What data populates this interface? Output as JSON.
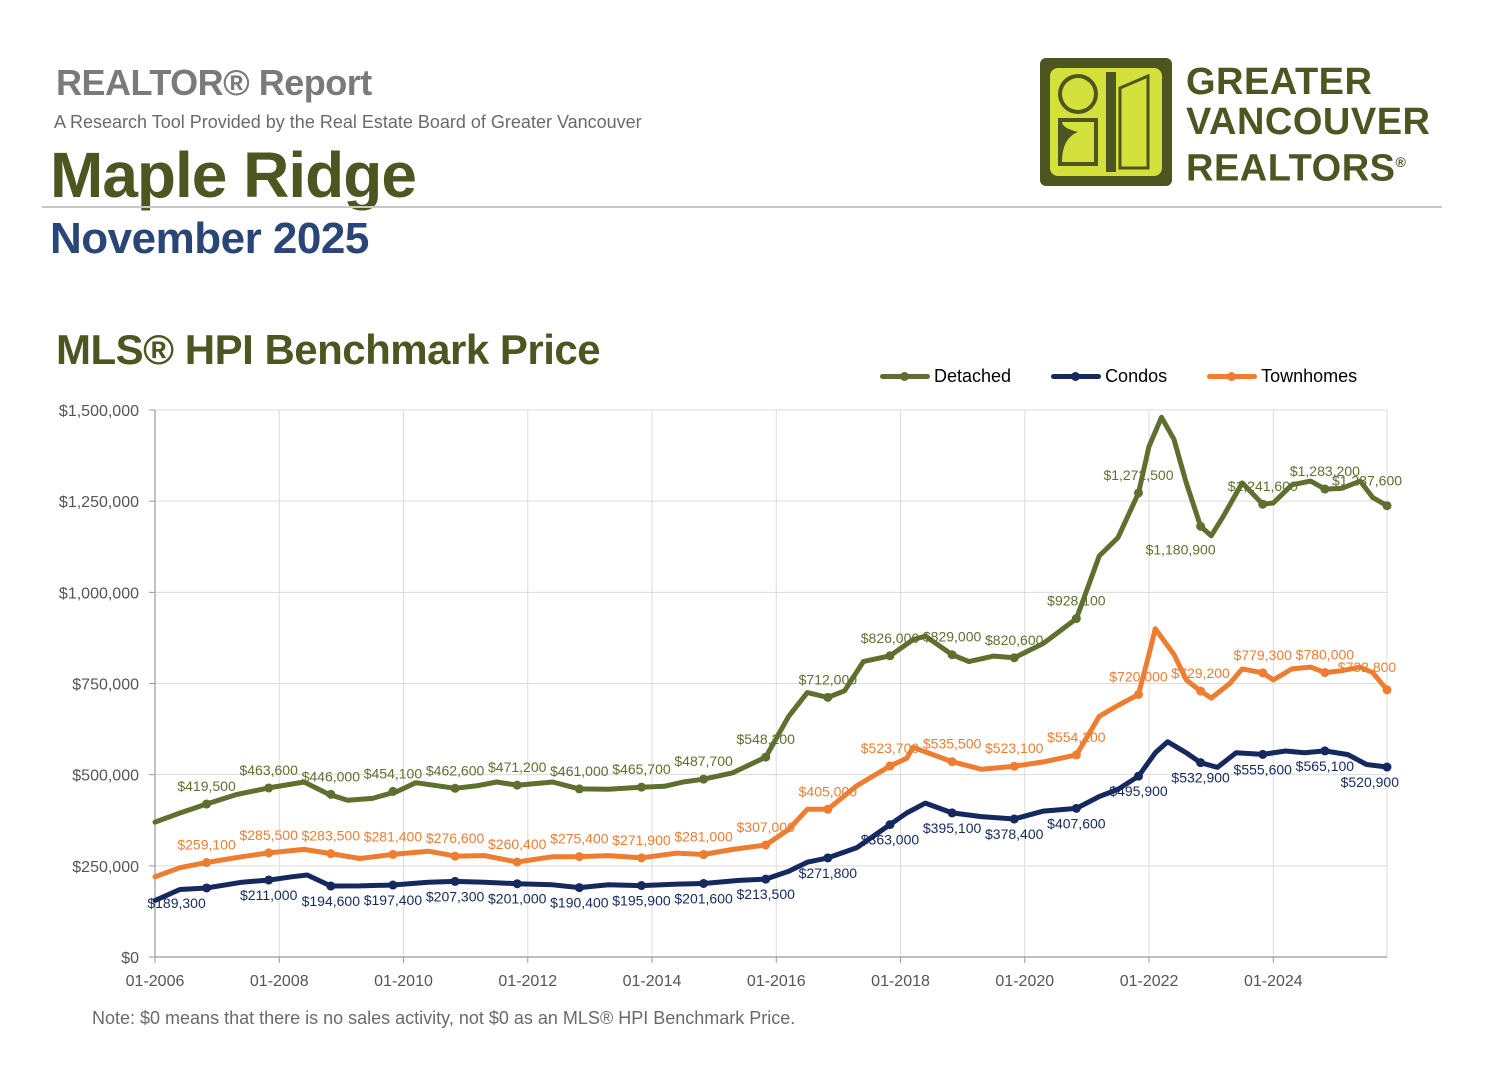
{
  "header": {
    "report_label": "REALTOR® Report",
    "subtitle": "A Research Tool Provided by the Real Estate Board of Greater Vancouver",
    "city": "Maple Ridge",
    "period": "November 2025"
  },
  "logo": {
    "line1": "GREATER",
    "line2": "VANCOUVER",
    "line3": "REALTORS",
    "mark": "®",
    "colors": {
      "dark": "#4d5521",
      "light": "#d4e03b"
    }
  },
  "footnote": "Note: $0 means that there is no sales activity, not $0 as an MLS® HPI Benchmark Price.",
  "colors": {
    "detached": "#5e6f2e",
    "condos": "#16295e",
    "townhomes": "#ee7d31",
    "grid": "#dcdcdc",
    "axis": "#999999"
  },
  "chart_data": {
    "type": "line",
    "title": "MLS® HPI Benchmark Price",
    "xlabel": "",
    "ylabel": "",
    "ylim": [
      0,
      1500000
    ],
    "y_ticks": [
      0,
      250000,
      500000,
      750000,
      1000000,
      1250000,
      1500000
    ],
    "y_tick_labels": [
      "$0",
      "$250,000",
      "$500,000",
      "$750,000",
      "$1,000,000",
      "$1,250,000",
      "$1,500,000"
    ],
    "xlim": [
      2006.0,
      2025.83
    ],
    "x_ticks": [
      2006,
      2008,
      2010,
      2012,
      2014,
      2016,
      2018,
      2020,
      2022,
      2024
    ],
    "x_tick_labels": [
      "01-2006",
      "01-2008",
      "01-2010",
      "01-2012",
      "01-2014",
      "01-2016",
      "01-2018",
      "01-2020",
      "01-2022",
      "01-2024"
    ],
    "grid": true,
    "legend_position": "top-right",
    "series": [
      {
        "name": "Detached",
        "color_key": "detached",
        "points": [
          [
            2006.0,
            370000
          ],
          [
            2006.4,
            395000
          ],
          [
            2006.83,
            419500
          ],
          [
            2007.3,
            445000
          ],
          [
            2007.83,
            463600
          ],
          [
            2008.4,
            480000
          ],
          [
            2008.8,
            446000
          ],
          [
            2009.1,
            430000
          ],
          [
            2009.5,
            435000
          ],
          [
            2009.9,
            454100
          ],
          [
            2010.2,
            478000
          ],
          [
            2010.83,
            462600
          ],
          [
            2011.2,
            470000
          ],
          [
            2011.5,
            480000
          ],
          [
            2011.83,
            471200
          ],
          [
            2012.4,
            480000
          ],
          [
            2012.83,
            461000
          ],
          [
            2013.3,
            460000
          ],
          [
            2013.83,
            465700
          ],
          [
            2014.2,
            468000
          ],
          [
            2014.5,
            480000
          ],
          [
            2014.83,
            487700
          ],
          [
            2015.3,
            505000
          ],
          [
            2015.83,
            548200
          ],
          [
            2016.2,
            660000
          ],
          [
            2016.5,
            725000
          ],
          [
            2016.83,
            712000
          ],
          [
            2017.1,
            730000
          ],
          [
            2017.4,
            810000
          ],
          [
            2017.83,
            826000
          ],
          [
            2018.2,
            870000
          ],
          [
            2018.4,
            880000
          ],
          [
            2018.83,
            829000
          ],
          [
            2019.1,
            810000
          ],
          [
            2019.5,
            825000
          ],
          [
            2019.83,
            820600
          ],
          [
            2020.3,
            860000
          ],
          [
            2020.83,
            928100
          ],
          [
            2021.2,
            1100000
          ],
          [
            2021.5,
            1150000
          ],
          [
            2021.83,
            1272500
          ],
          [
            2022.0,
            1400000
          ],
          [
            2022.2,
            1480000
          ],
          [
            2022.4,
            1420000
          ],
          [
            2022.6,
            1300000
          ],
          [
            2022.83,
            1180900
          ],
          [
            2023.0,
            1155000
          ],
          [
            2023.2,
            1210000
          ],
          [
            2023.5,
            1300000
          ],
          [
            2023.83,
            1241600
          ],
          [
            2024.0,
            1245000
          ],
          [
            2024.3,
            1295000
          ],
          [
            2024.6,
            1305000
          ],
          [
            2024.83,
            1283200
          ],
          [
            2025.1,
            1285000
          ],
          [
            2025.4,
            1305000
          ],
          [
            2025.6,
            1260000
          ],
          [
            2025.83,
            1237600
          ]
        ],
        "labels": [
          {
            "x": 2006.83,
            "y": 419500,
            "text": "$419,500"
          },
          {
            "x": 2007.83,
            "y": 463600,
            "text": "$463,600"
          },
          {
            "x": 2008.83,
            "y": 446000,
            "text": "$446,000"
          },
          {
            "x": 2009.83,
            "y": 454100,
            "text": "$454,100"
          },
          {
            "x": 2010.83,
            "y": 462600,
            "text": "$462,600"
          },
          {
            "x": 2011.83,
            "y": 471200,
            "text": "$471,200"
          },
          {
            "x": 2012.83,
            "y": 461000,
            "text": "$461,000"
          },
          {
            "x": 2013.83,
            "y": 465700,
            "text": "$465,700"
          },
          {
            "x": 2014.83,
            "y": 487700,
            "text": "$487,700"
          },
          {
            "x": 2015.83,
            "y": 548200,
            "text": "$548,200"
          },
          {
            "x": 2016.83,
            "y": 712000,
            "text": "$712,000"
          },
          {
            "x": 2017.83,
            "y": 826000,
            "text": "$826,000"
          },
          {
            "x": 2018.83,
            "y": 829000,
            "text": "$829,000"
          },
          {
            "x": 2019.83,
            "y": 820600,
            "text": "$820,600"
          },
          {
            "x": 2020.83,
            "y": 928100,
            "text": "$928,100"
          },
          {
            "x": 2021.83,
            "y": 1272500,
            "text": "$1,272,500"
          },
          {
            "x": 2022.83,
            "y": 1180900,
            "text": "$1,180,900"
          },
          {
            "x": 2023.83,
            "y": 1241600,
            "text": "$1,241,600"
          },
          {
            "x": 2024.83,
            "y": 1283200,
            "text": "$1,283,200"
          },
          {
            "x": 2025.83,
            "y": 1237600,
            "text": "$1,237,600"
          }
        ]
      },
      {
        "name": "Condos",
        "color_key": "condos",
        "points": [
          [
            2006.0,
            155000
          ],
          [
            2006.4,
            185000
          ],
          [
            2006.83,
            189300
          ],
          [
            2007.4,
            205000
          ],
          [
            2007.83,
            211000
          ],
          [
            2008.2,
            220000
          ],
          [
            2008.45,
            225000
          ],
          [
            2008.83,
            194600
          ],
          [
            2009.3,
            195000
          ],
          [
            2009.83,
            197400
          ],
          [
            2010.4,
            205000
          ],
          [
            2010.83,
            207300
          ],
          [
            2011.3,
            205000
          ],
          [
            2011.83,
            201000
          ],
          [
            2012.4,
            198000
          ],
          [
            2012.83,
            190400
          ],
          [
            2013.3,
            198000
          ],
          [
            2013.83,
            195900
          ],
          [
            2014.4,
            200000
          ],
          [
            2014.83,
            201600
          ],
          [
            2015.4,
            210000
          ],
          [
            2015.83,
            213500
          ],
          [
            2016.2,
            235000
          ],
          [
            2016.5,
            260000
          ],
          [
            2016.83,
            271800
          ],
          [
            2017.3,
            300000
          ],
          [
            2017.83,
            363000
          ],
          [
            2018.1,
            395000
          ],
          [
            2018.4,
            422000
          ],
          [
            2018.83,
            395100
          ],
          [
            2019.3,
            385000
          ],
          [
            2019.83,
            378400
          ],
          [
            2020.3,
            400000
          ],
          [
            2020.83,
            407600
          ],
          [
            2021.2,
            440000
          ],
          [
            2021.5,
            460000
          ],
          [
            2021.83,
            495900
          ],
          [
            2022.1,
            560000
          ],
          [
            2022.3,
            590000
          ],
          [
            2022.6,
            560000
          ],
          [
            2022.83,
            532900
          ],
          [
            2023.1,
            520000
          ],
          [
            2023.4,
            560000
          ],
          [
            2023.83,
            555600
          ],
          [
            2024.2,
            565000
          ],
          [
            2024.5,
            560000
          ],
          [
            2024.83,
            565100
          ],
          [
            2025.2,
            555000
          ],
          [
            2025.5,
            528000
          ],
          [
            2025.83,
            520900
          ]
        ],
        "labels": [
          {
            "x": 2006.83,
            "y": 189300,
            "text": "$189,300"
          },
          {
            "x": 2007.83,
            "y": 211000,
            "text": "$211,000"
          },
          {
            "x": 2008.83,
            "y": 194600,
            "text": "$194,600"
          },
          {
            "x": 2009.83,
            "y": 197400,
            "text": "$197,400"
          },
          {
            "x": 2010.83,
            "y": 207300,
            "text": "$207,300"
          },
          {
            "x": 2011.83,
            "y": 201000,
            "text": "$201,000"
          },
          {
            "x": 2012.83,
            "y": 190400,
            "text": "$190,400"
          },
          {
            "x": 2013.83,
            "y": 195900,
            "text": "$195,900"
          },
          {
            "x": 2014.83,
            "y": 201600,
            "text": "$201,600"
          },
          {
            "x": 2015.83,
            "y": 213500,
            "text": "$213,500"
          },
          {
            "x": 2016.83,
            "y": 271800,
            "text": "$271,800"
          },
          {
            "x": 2017.83,
            "y": 363000,
            "text": "$363,000"
          },
          {
            "x": 2018.83,
            "y": 395100,
            "text": "$395,100"
          },
          {
            "x": 2019.83,
            "y": 378400,
            "text": "$378,400"
          },
          {
            "x": 2020.83,
            "y": 407600,
            "text": "$407,600"
          },
          {
            "x": 2021.83,
            "y": 495900,
            "text": "$495,900"
          },
          {
            "x": 2022.83,
            "y": 532900,
            "text": "$532,900"
          },
          {
            "x": 2023.83,
            "y": 555600,
            "text": "$555,600"
          },
          {
            "x": 2024.83,
            "y": 565100,
            "text": "$565,100"
          },
          {
            "x": 2025.83,
            "y": 520900,
            "text": "$520,900"
          }
        ]
      },
      {
        "name": "Townhomes",
        "color_key": "townhomes",
        "points": [
          [
            2006.0,
            220000
          ],
          [
            2006.4,
            245000
          ],
          [
            2006.83,
            259100
          ],
          [
            2007.4,
            275000
          ],
          [
            2007.83,
            285500
          ],
          [
            2008.4,
            295000
          ],
          [
            2008.83,
            283500
          ],
          [
            2009.3,
            270000
          ],
          [
            2009.83,
            281400
          ],
          [
            2010.4,
            290000
          ],
          [
            2010.83,
            276600
          ],
          [
            2011.3,
            278000
          ],
          [
            2011.83,
            260400
          ],
          [
            2012.4,
            275000
          ],
          [
            2012.83,
            275400
          ],
          [
            2013.3,
            278000
          ],
          [
            2013.83,
            271900
          ],
          [
            2014.4,
            285000
          ],
          [
            2014.83,
            281000
          ],
          [
            2015.3,
            295000
          ],
          [
            2015.83,
            307000
          ],
          [
            2016.2,
            350000
          ],
          [
            2016.5,
            405000
          ],
          [
            2016.83,
            405000
          ],
          [
            2017.3,
            470000
          ],
          [
            2017.83,
            523700
          ],
          [
            2018.1,
            545000
          ],
          [
            2018.2,
            575000
          ],
          [
            2018.83,
            535500
          ],
          [
            2019.3,
            515000
          ],
          [
            2019.83,
            523100
          ],
          [
            2020.3,
            535000
          ],
          [
            2020.83,
            554200
          ],
          [
            2021.2,
            660000
          ],
          [
            2021.5,
            690000
          ],
          [
            2021.83,
            720000
          ],
          [
            2022.0,
            830000
          ],
          [
            2022.1,
            900000
          ],
          [
            2022.4,
            830000
          ],
          [
            2022.6,
            760000
          ],
          [
            2022.83,
            729200
          ],
          [
            2023.0,
            710000
          ],
          [
            2023.3,
            750000
          ],
          [
            2023.5,
            790000
          ],
          [
            2023.83,
            779300
          ],
          [
            2024.0,
            760000
          ],
          [
            2024.3,
            790000
          ],
          [
            2024.6,
            795000
          ],
          [
            2024.83,
            780000
          ],
          [
            2025.1,
            785000
          ],
          [
            2025.4,
            795000
          ],
          [
            2025.6,
            780000
          ],
          [
            2025.83,
            732800
          ]
        ],
        "labels": [
          {
            "x": 2006.83,
            "y": 259100,
            "text": "$259,100"
          },
          {
            "x": 2007.83,
            "y": 285500,
            "text": "$285,500"
          },
          {
            "x": 2008.83,
            "y": 283500,
            "text": "$283,500"
          },
          {
            "x": 2009.83,
            "y": 281400,
            "text": "$281,400"
          },
          {
            "x": 2010.83,
            "y": 276600,
            "text": "$276,600"
          },
          {
            "x": 2011.83,
            "y": 260400,
            "text": "$260,400"
          },
          {
            "x": 2012.83,
            "y": 275400,
            "text": "$275,400"
          },
          {
            "x": 2013.83,
            "y": 271900,
            "text": "$271,900"
          },
          {
            "x": 2014.83,
            "y": 281000,
            "text": "$281,000"
          },
          {
            "x": 2015.83,
            "y": 307000,
            "text": "$307,000"
          },
          {
            "x": 2016.83,
            "y": 405000,
            "text": "$405,000"
          },
          {
            "x": 2017.83,
            "y": 523700,
            "text": "$523,700"
          },
          {
            "x": 2018.83,
            "y": 535500,
            "text": "$535,500"
          },
          {
            "x": 2019.83,
            "y": 523100,
            "text": "$523,100"
          },
          {
            "x": 2020.83,
            "y": 554200,
            "text": "$554,200"
          },
          {
            "x": 2021.83,
            "y": 720000,
            "text": "$720,000"
          },
          {
            "x": 2022.83,
            "y": 729200,
            "text": "$729,200"
          },
          {
            "x": 2023.83,
            "y": 779300,
            "text": "$779,300"
          },
          {
            "x": 2024.83,
            "y": 780000,
            "text": "$780,000"
          },
          {
            "x": 2025.83,
            "y": 732800,
            "text": "$732,800"
          }
        ]
      }
    ]
  }
}
